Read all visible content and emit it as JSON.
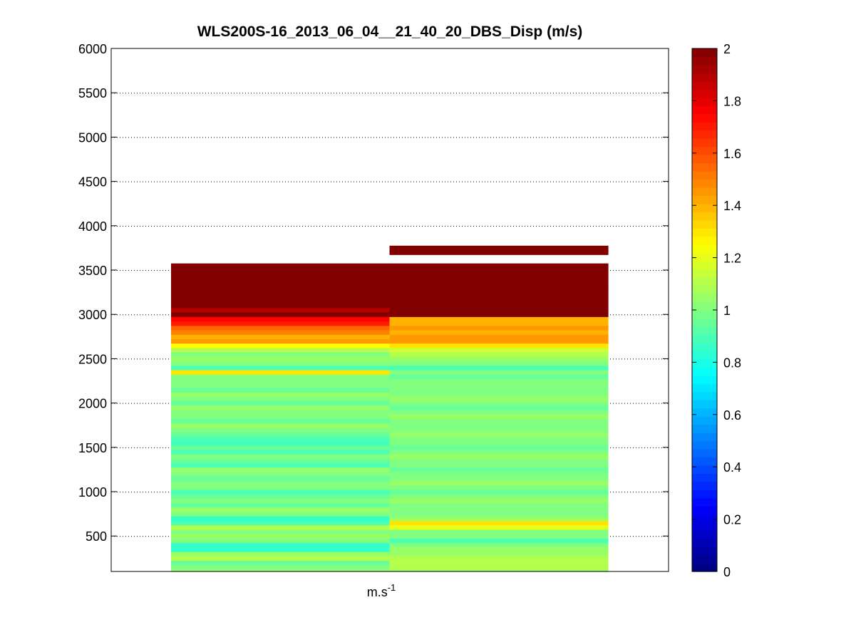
{
  "chart_data": {
    "type": "heatmap",
    "title": "WLS200S-16_2013_06_04__21_40_20_DBS_Disp (m/s)",
    "xlabel_base": "m.s",
    "xlabel_sup": "-1",
    "ylabel": "",
    "ylim": [
      100,
      6000
    ],
    "yticks": [
      500,
      1000,
      1500,
      2000,
      2500,
      3000,
      3500,
      4000,
      4500,
      5000,
      5500,
      6000
    ],
    "grid": "horizontal dotted",
    "colormap": "jet",
    "clim": [
      0,
      2
    ],
    "colorbar_ticks": [
      0,
      0.2,
      0.4,
      0.6,
      0.8,
      1,
      1.2,
      1.4,
      1.6,
      1.8,
      2
    ],
    "colorbar_position": "right",
    "columns": 2,
    "range_gate_step": 50,
    "range_first": 100,
    "series": [
      {
        "values": [
          1.05,
          1.0,
          0.95,
          1.1,
          1.05,
          0.85,
          0.85,
          1.0,
          1.05,
          1.0,
          1.1,
          0.9,
          0.85,
          1.0,
          1.05,
          0.95,
          1.0,
          0.95,
          0.9,
          1.0,
          1.0,
          0.95,
          1.0,
          1.05,
          0.9,
          0.95,
          1.0,
          0.9,
          0.95,
          0.88,
          0.9,
          0.95,
          1.0,
          1.05,
          0.95,
          1.0,
          1.0,
          1.05,
          0.95,
          1.0,
          1.05,
          0.95,
          1.0,
          1.0,
          1.0,
          1.3,
          0.9,
          1.0,
          1.05,
          1.0,
          1.1,
          1.25,
          1.45,
          1.4,
          1.5,
          1.55,
          1.7,
          1.75,
          2.0,
          1.9,
          2.0,
          2.0,
          2.0,
          2.0,
          2.0,
          2.0,
          2.0,
          2.0,
          2.0,
          2.0,
          null,
          null,
          null,
          null,
          null,
          null,
          null,
          null,
          null,
          null,
          null,
          null,
          null,
          null,
          null,
          null,
          null,
          null,
          null,
          null,
          null,
          null,
          null,
          null,
          null,
          null,
          null,
          null,
          null,
          null,
          null,
          null,
          null,
          null,
          null,
          null,
          null,
          null,
          null,
          null,
          null,
          null,
          null,
          null,
          null,
          null,
          null,
          null,
          null,
          null
        ]
      },
      {
        "values": [
          1.05,
          1.1,
          1.1,
          1.1,
          1.05,
          1.05,
          1.0,
          0.9,
          1.0,
          1.0,
          1.2,
          1.3,
          1.05,
          1.0,
          1.0,
          1.0,
          1.05,
          1.0,
          0.95,
          1.0,
          1.05,
          1.0,
          1.0,
          0.95,
          1.0,
          1.0,
          1.05,
          1.0,
          0.95,
          1.0,
          1.0,
          1.05,
          1.0,
          1.0,
          1.0,
          1.05,
          1.0,
          0.95,
          1.0,
          1.05,
          1.0,
          1.0,
          1.0,
          1.0,
          0.95,
          1.0,
          0.9,
          1.0,
          1.05,
          1.1,
          1.15,
          1.3,
          1.45,
          1.45,
          1.4,
          1.45,
          1.4,
          1.4,
          2.0,
          2.0,
          2.0,
          2.0,
          2.0,
          2.0,
          2.0,
          2.0,
          2.0,
          2.0,
          2.0,
          2.0,
          null,
          null,
          2.0,
          2.0,
          null,
          null,
          null,
          null,
          null,
          null,
          null,
          null,
          null,
          null,
          null,
          null,
          null,
          null,
          null,
          null,
          null,
          null,
          null,
          null,
          null,
          null,
          null,
          null,
          null,
          null,
          null,
          null,
          null,
          null,
          null,
          null,
          null,
          null,
          null,
          null,
          null,
          null,
          null,
          null,
          null,
          null,
          null,
          null,
          null,
          null
        ]
      }
    ]
  }
}
